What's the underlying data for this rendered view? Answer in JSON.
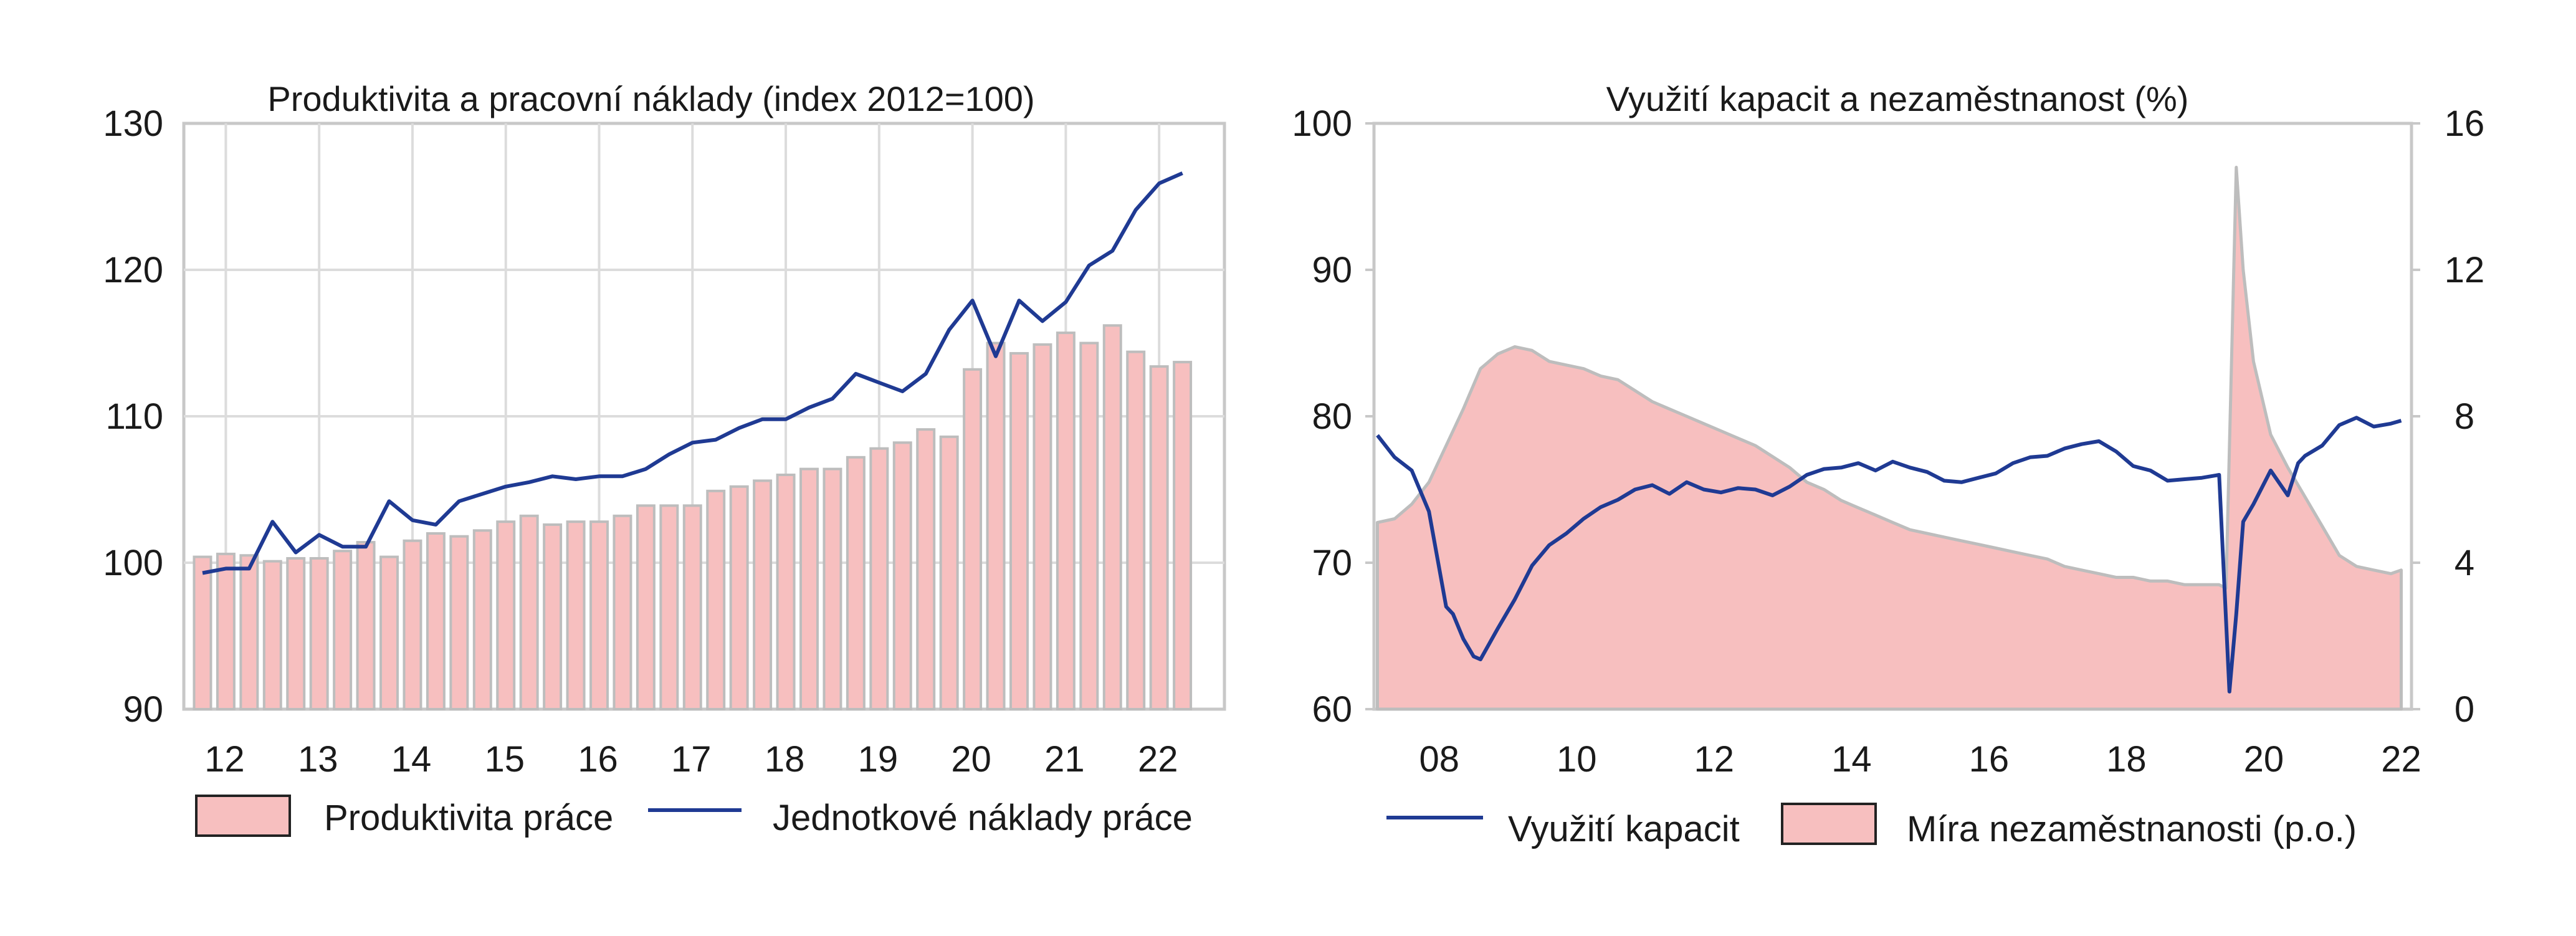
{
  "chart_data": [
    {
      "type": "bar+line",
      "title": "Produktivita a pracovní náklady (index 2012=100)",
      "y_ticks": [
        "130",
        "120",
        "110",
        "100",
        "90"
      ],
      "ylim": [
        90,
        130
      ],
      "x_ticks": [
        "12",
        "13",
        "14",
        "15",
        "16",
        "17",
        "18",
        "19",
        "20",
        "21",
        "22"
      ],
      "grid": true,
      "legend_position": "bottom",
      "colors": {
        "bar_fill": "#f7bfbf",
        "bar_stroke": "#bdbdbd",
        "line": "#1f3a93"
      },
      "series": [
        {
          "name": "Produktivita práce",
          "kind": "bar",
          "x": [
            2011.75,
            2012.0,
            2012.25,
            2012.5,
            2012.75,
            2013.0,
            2013.25,
            2013.5,
            2013.75,
            2014.0,
            2014.25,
            2014.5,
            2014.75,
            2015.0,
            2015.25,
            2015.5,
            2015.75,
            2016.0,
            2016.25,
            2016.5,
            2016.75,
            2017.0,
            2017.25,
            2017.5,
            2017.75,
            2018.0,
            2018.25,
            2018.5,
            2018.75,
            2019.0,
            2019.25,
            2019.5,
            2019.75,
            2020.0,
            2020.25,
            2020.5,
            2020.75,
            2021.0,
            2021.25,
            2021.5,
            2021.75,
            2022.0,
            2022.25
          ],
          "values": [
            100.4,
            100.6,
            100.5,
            100.1,
            100.3,
            100.3,
            100.8,
            101.4,
            100.4,
            101.5,
            102.0,
            101.8,
            102.2,
            102.8,
            103.2,
            102.6,
            102.8,
            102.8,
            103.2,
            103.9,
            103.9,
            103.9,
            104.9,
            105.2,
            105.6,
            106.0,
            106.4,
            106.4,
            107.2,
            107.8,
            108.2,
            109.1,
            108.6,
            113.2,
            115.0,
            114.3,
            114.9,
            115.7,
            115.0,
            116.2,
            114.4,
            113.4,
            113.7
          ]
        },
        {
          "name": "Jednotkové náklady práce",
          "kind": "line",
          "x": [
            2011.75,
            2012.0,
            2012.25,
            2012.5,
            2012.75,
            2013.0,
            2013.25,
            2013.5,
            2013.75,
            2014.0,
            2014.25,
            2014.5,
            2014.75,
            2015.0,
            2015.25,
            2015.5,
            2015.75,
            2016.0,
            2016.25,
            2016.5,
            2016.75,
            2017.0,
            2017.25,
            2017.5,
            2017.75,
            2018.0,
            2018.25,
            2018.5,
            2018.75,
            2019.0,
            2019.25,
            2019.5,
            2019.75,
            2020.0,
            2020.25,
            2020.5,
            2020.75,
            2021.0,
            2021.25,
            2021.5,
            2021.75,
            2022.0,
            2022.25
          ],
          "values": [
            99.3,
            99.6,
            99.6,
            102.8,
            100.7,
            101.9,
            101.1,
            101.1,
            104.2,
            102.9,
            102.6,
            104.2,
            104.7,
            105.2,
            105.5,
            105.9,
            105.7,
            105.9,
            105.9,
            106.4,
            107.4,
            108.2,
            108.4,
            109.2,
            109.8,
            109.8,
            110.6,
            111.2,
            112.9,
            112.3,
            111.7,
            112.9,
            115.9,
            117.9,
            114.1,
            117.9,
            116.5,
            117.8,
            120.3,
            121.3,
            124.1,
            125.9,
            126.6
          ]
        }
      ]
    },
    {
      "type": "area+line",
      "title": "Využití kapacit a nezaměstnanost (%)",
      "y_ticks_left": [
        "100",
        "90",
        "80",
        "70",
        "60"
      ],
      "y_ticks_right": [
        "16",
        "12",
        "8",
        "4",
        "0"
      ],
      "ylim_left": [
        60,
        100
      ],
      "ylim_right": [
        0,
        16
      ],
      "x_ticks": [
        "08",
        "10",
        "12",
        "14",
        "16",
        "18",
        "20",
        "22"
      ],
      "grid": false,
      "legend_position": "bottom",
      "colors": {
        "area_fill": "#f7bfbf",
        "area_stroke": "#bdbdbd",
        "line": "#1f3a93"
      },
      "series": [
        {
          "name": "Využití kapacit",
          "kind": "line",
          "axis": "left",
          "x": [
            2007.5,
            2007.75,
            2008.0,
            2008.25,
            2008.5,
            2008.6,
            2008.75,
            2008.9,
            2009.0,
            2009.25,
            2009.5,
            2009.75,
            2010.0,
            2010.25,
            2010.5,
            2010.75,
            2011.0,
            2011.25,
            2011.5,
            2011.75,
            2012.0,
            2012.25,
            2012.5,
            2012.75,
            2013.0,
            2013.25,
            2013.5,
            2013.75,
            2014.0,
            2014.25,
            2014.5,
            2014.75,
            2015.0,
            2015.25,
            2015.5,
            2015.75,
            2016.0,
            2016.25,
            2016.5,
            2016.75,
            2017.0,
            2017.25,
            2017.5,
            2017.75,
            2018.0,
            2018.25,
            2018.5,
            2018.75,
            2019.0,
            2019.25,
            2019.5,
            2019.75,
            2019.9,
            2020.0,
            2020.1,
            2020.25,
            2020.5,
            2020.75,
            2020.9,
            2021.0,
            2021.25,
            2021.5,
            2021.75,
            2022.0,
            2022.25,
            2022.4
          ],
          "values": [
            78.7,
            77.2,
            76.3,
            73.5,
            67.0,
            66.5,
            64.8,
            63.6,
            63.4,
            65.5,
            67.5,
            69.8,
            71.2,
            72.0,
            73.0,
            73.8,
            74.3,
            75.0,
            75.3,
            74.7,
            75.5,
            75.0,
            74.8,
            75.1,
            75.0,
            74.6,
            75.2,
            76.0,
            76.4,
            76.5,
            76.8,
            76.3,
            76.9,
            76.5,
            76.2,
            75.6,
            75.5,
            75.8,
            76.1,
            76.8,
            77.2,
            77.3,
            77.8,
            78.1,
            78.3,
            77.6,
            76.6,
            76.3,
            75.6,
            75.7,
            75.8,
            76.0,
            61.2,
            66.5,
            72.8,
            74.0,
            76.3,
            74.6,
            76.8,
            77.3,
            78.0,
            79.4,
            79.9,
            79.3,
            79.5,
            79.7
          ]
        },
        {
          "name": "Míra nezaměstnanosti (p.o.)",
          "kind": "area",
          "axis": "right",
          "x": [
            2007.5,
            2007.75,
            2008.0,
            2008.25,
            2008.5,
            2008.75,
            2009.0,
            2009.25,
            2009.5,
            2009.75,
            2010.0,
            2010.25,
            2010.5,
            2010.75,
            2011.0,
            2011.25,
            2011.5,
            2011.75,
            2012.0,
            2012.25,
            2012.5,
            2012.75,
            2013.0,
            2013.25,
            2013.5,
            2013.75,
            2014.0,
            2014.25,
            2014.5,
            2014.75,
            2015.0,
            2015.25,
            2015.5,
            2015.75,
            2016.0,
            2016.25,
            2016.5,
            2016.75,
            2017.0,
            2017.25,
            2017.5,
            2017.75,
            2018.0,
            2018.25,
            2018.5,
            2018.75,
            2019.0,
            2019.25,
            2019.5,
            2019.75,
            2019.85,
            2020.0,
            2020.1,
            2020.25,
            2020.5,
            2020.75,
            2021.0,
            2021.25,
            2021.5,
            2021.75,
            2022.0,
            2022.25,
            2022.4
          ],
          "values": [
            5.1,
            5.2,
            5.6,
            6.2,
            7.2,
            8.2,
            9.3,
            9.7,
            9.9,
            9.8,
            9.5,
            9.4,
            9.3,
            9.1,
            9.0,
            8.7,
            8.4,
            8.2,
            8.0,
            7.8,
            7.6,
            7.4,
            7.2,
            6.9,
            6.6,
            6.2,
            6.0,
            5.7,
            5.5,
            5.3,
            5.1,
            4.9,
            4.8,
            4.7,
            4.6,
            4.5,
            4.4,
            4.3,
            4.2,
            4.1,
            3.9,
            3.8,
            3.7,
            3.6,
            3.6,
            3.5,
            3.5,
            3.4,
            3.4,
            3.4,
            3.3,
            14.8,
            12.0,
            9.5,
            7.5,
            6.6,
            5.8,
            5.0,
            4.2,
            3.9,
            3.8,
            3.7,
            3.8
          ]
        }
      ]
    }
  ]
}
